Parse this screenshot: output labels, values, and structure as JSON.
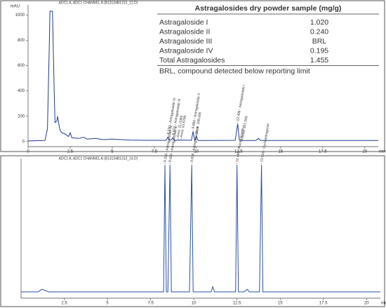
{
  "chart_data": [
    {
      "type": "line",
      "title": "ADC1 A, ADC1 CHANNEL A (B13134B1313_12.D)",
      "xlabel": "min",
      "ylabel": "mAU",
      "color": "#1f3b8c",
      "x": [
        0,
        1.0,
        1.15,
        1.25,
        1.3,
        1.45,
        1.55,
        1.6,
        1.7,
        1.75,
        1.85,
        1.9,
        2.0,
        2.2,
        2.4,
        2.5,
        2.6,
        3.0,
        3.3,
        3.5,
        4.0,
        4.5,
        5.0,
        6.0,
        7.0,
        8.2,
        8.3,
        8.4,
        8.5,
        8.6,
        8.7,
        9.0,
        9.7,
        9.8,
        9.9,
        10.0,
        10.1,
        10.5,
        12.3,
        12.45,
        12.55,
        12.7,
        13.5,
        13.7,
        13.8,
        14,
        20.8
      ],
      "values": [
        5,
        8,
        100,
        700,
        1030,
        1030,
        400,
        150,
        160,
        200,
        120,
        90,
        70,
        60,
        40,
        70,
        30,
        25,
        35,
        20,
        25,
        15,
        20,
        12,
        10,
        10,
        35,
        10,
        12,
        30,
        8,
        12,
        10,
        80,
        10,
        40,
        8,
        8,
        10,
        140,
        10,
        8,
        8,
        25,
        8,
        8,
        8
      ],
      "xlim": [
        0,
        20.8
      ],
      "ylim": [
        -40,
        1080
      ],
      "xticks": [
        0,
        2.5,
        5,
        7.5,
        10,
        12.5,
        15,
        17.5,
        20
      ],
      "yticks": [
        0,
        200,
        400,
        600,
        800,
        1000
      ],
      "annotations": [
        {
          "x": 8.33,
          "text": "8.330 - Astragaloside IV"
        },
        {
          "x": 8.63,
          "text": "8.627 - Astragaloside III"
        },
        {
          "x": 8.9,
          "text": "Area: 21.0365"
        },
        {
          "x": 9.1,
          "text": "Area: 10.6789"
        },
        {
          "x": 9.8,
          "text": "9.880 - Astragaloside II"
        },
        {
          "x": 10.0,
          "text": "Area: 108.095"
        },
        {
          "x": 12.45,
          "text": "12.496 - Astragaloside I"
        },
        {
          "x": 12.75,
          "text": "Area: 107.065"
        }
      ],
      "table": {
        "title": "Astragalosides dry powder sample (mg/g)",
        "rows": [
          [
            "Astragaloside I",
            "1.020"
          ],
          [
            "Astragaloside II",
            "0.240"
          ],
          [
            "Astragaloside III",
            "BRL"
          ],
          [
            "Astragaloside IV",
            "0.195"
          ],
          [
            "Total Astragalosides",
            "1.455"
          ]
        ],
        "note": "BRL, compound detected below reporting limit"
      }
    },
    {
      "type": "line",
      "title": "ADC1 A, ADC1 CHANNEL A (B13134B1313_14.D)",
      "xlabel": "min",
      "color": "#2a4fa8",
      "x": [
        0,
        1.0,
        1.2,
        1.4,
        1.6,
        8.1,
        8.25,
        8.33,
        8.41,
        8.5,
        8.62,
        8.7,
        8.8,
        9.75,
        9.88,
        9.96,
        10.05,
        10.5,
        11.0,
        11.1,
        11.2,
        12.3,
        12.42,
        12.5,
        12.58,
        12.9,
        13.1,
        13.2,
        13.8,
        13.92,
        14.0,
        14.1,
        20.8
      ],
      "values": [
        0,
        0,
        2,
        1,
        0,
        0,
        0,
        100,
        0,
        0,
        100,
        0,
        0,
        0,
        100,
        0,
        0,
        0,
        0,
        4,
        0,
        0,
        0,
        100,
        0,
        0,
        2,
        0,
        0,
        100,
        0,
        0,
        0
      ],
      "xlim": [
        0,
        20.8
      ],
      "ylim": [
        -5,
        105
      ],
      "xticks": [
        2.5,
        5,
        7.5,
        10,
        12.5,
        15,
        17.5,
        20
      ],
      "annotations": [
        {
          "x": 8.33,
          "text": "8.330 - Astragaloside IV"
        },
        {
          "x": 8.62,
          "text": "8.620 - Astragaloside III"
        },
        {
          "x": 9.88,
          "text": "9.878 - Astragaloside II"
        },
        {
          "x": 12.5,
          "text": "12.495 - Astragaloside I"
        },
        {
          "x": 13.92,
          "text": "13.918 - Cycloastragenol"
        }
      ]
    }
  ]
}
